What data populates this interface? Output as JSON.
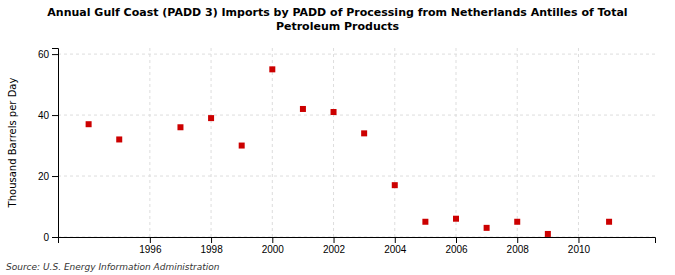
{
  "chart_data": {
    "type": "scatter",
    "title": "Annual Gulf Coast (PADD 3) Imports by PADD of Processing from Netherlands Antilles of Total\nPetroleum Products",
    "ylabel": "Thousand Barrels per Day",
    "source": "Source: U.S. Energy Information Administration",
    "x": [
      1994,
      1995,
      1997,
      1998,
      1999,
      2000,
      2001,
      2002,
      2003,
      2004,
      2005,
      2006,
      2007,
      2008,
      2009,
      2011
    ],
    "values": [
      37,
      32,
      36,
      39,
      30,
      55,
      42,
      41,
      34,
      17,
      5,
      6,
      3,
      5,
      1,
      5
    ],
    "xlim": [
      1993.0,
      2012.5
    ],
    "ylim": [
      0,
      62
    ],
    "xticks": [
      1996,
      1998,
      2000,
      2002,
      2004,
      2006,
      2008,
      2010
    ],
    "yticks": [
      0,
      20,
      40,
      60
    ],
    "color": "#cc0000",
    "marker": "square",
    "grid": true
  }
}
